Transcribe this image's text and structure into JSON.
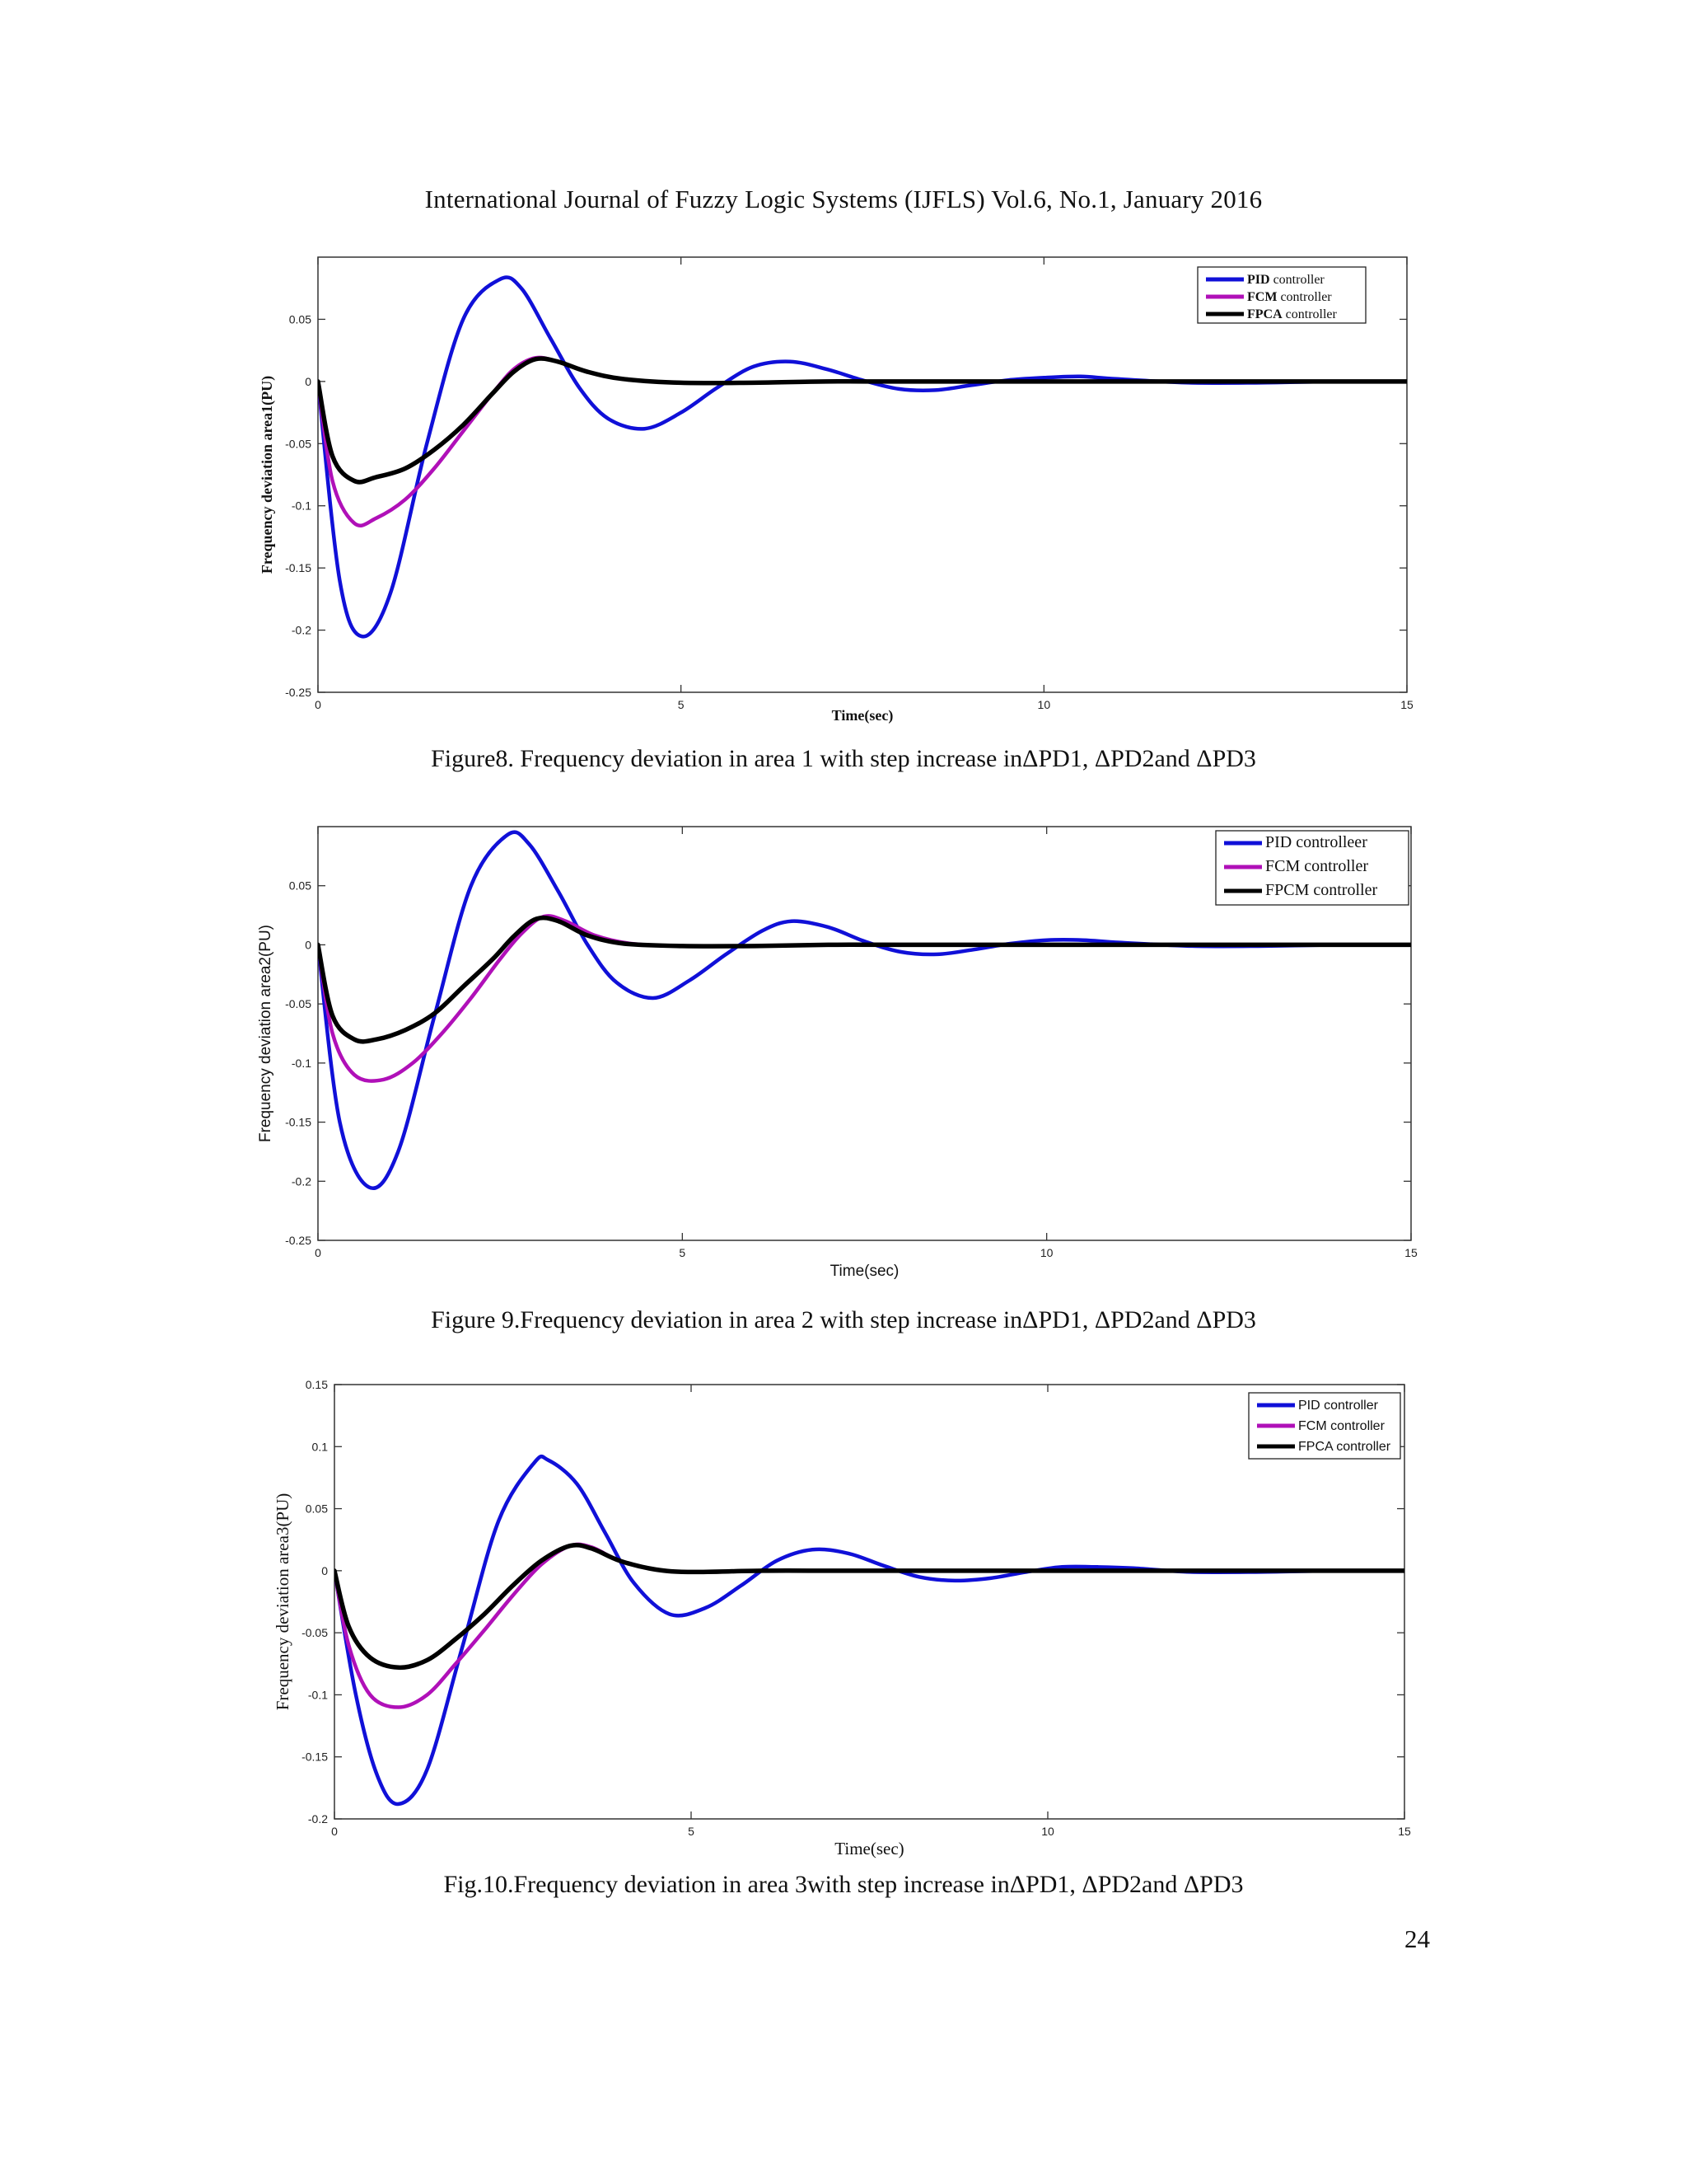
{
  "header": {
    "running_title": "International Journal of Fuzzy Logic Systems (IJFLS) Vol.6, No.1, January 2016"
  },
  "page_number": "24",
  "figures": [
    {
      "caption": "Figure8. Frequency deviation in area 1 with step increase inΔPD1, ΔPD2and ΔPD3"
    },
    {
      "caption": "Figure 9.Frequency deviation in area 2 with step increase inΔPD1, ΔPD2and ΔPD3"
    },
    {
      "caption": "Fig.10.Frequency deviation in area 3with step increase inΔPD1, ΔPD2and ΔPD3"
    }
  ],
  "colors": {
    "pid": "#1010d8",
    "fcm": "#b010b8",
    "fpca": "#000000"
  },
  "chart_data": [
    {
      "type": "line",
      "xlabel": "Time(sec)",
      "ylabel": "Frequency deviation area1(PU)",
      "xlim": [
        0,
        15
      ],
      "ylim": [
        -0.25,
        0.1
      ],
      "xticks": [
        "0",
        "5",
        "10",
        "15"
      ],
      "yticks": [
        "0.05",
        "0",
        "-0.05",
        "-0.1",
        "-0.15",
        "-0.2",
        "-0.25"
      ],
      "legend_position": "top-right",
      "series": [
        {
          "name": "PID controller",
          "color": "#1010d8",
          "x": [
            0,
            0.3,
            0.6,
            1.0,
            1.5,
            2.0,
            2.5,
            2.8,
            3.2,
            3.6,
            4.0,
            4.5,
            5.0,
            5.5,
            6.0,
            6.5,
            7.0,
            7.5,
            8.0,
            8.5,
            9.0,
            9.5,
            10.0,
            10.5,
            11.0,
            12.0,
            13.0,
            14.0,
            15.0
          ],
          "y": [
            0,
            -0.16,
            -0.205,
            -0.17,
            -0.05,
            0.05,
            0.082,
            0.075,
            0.035,
            -0.005,
            -0.03,
            -0.038,
            -0.025,
            -0.005,
            0.012,
            0.016,
            0.01,
            0.001,
            -0.006,
            -0.007,
            -0.003,
            0.001,
            0.003,
            0.004,
            0.002,
            -0.001,
            -0.001,
            0,
            0
          ]
        },
        {
          "name": "FCM controller",
          "color": "#b010b8",
          "x": [
            0,
            0.2,
            0.5,
            0.8,
            1.2,
            1.6,
            2.0,
            2.4,
            2.7,
            3.0,
            3.3,
            3.7,
            4.2,
            5.0,
            6.0,
            7.0,
            8.0,
            10.0,
            12.0,
            15.0
          ],
          "y": [
            0,
            -0.08,
            -0.114,
            -0.11,
            -0.095,
            -0.07,
            -0.04,
            -0.01,
            0.01,
            0.019,
            0.016,
            0.008,
            0.002,
            -0.001,
            -0.001,
            0,
            0,
            0,
            0,
            0
          ]
        },
        {
          "name": "FPCA controller",
          "color": "#000000",
          "x": [
            0,
            0.2,
            0.5,
            0.8,
            1.2,
            1.6,
            2.0,
            2.4,
            2.7,
            3.0,
            3.3,
            3.7,
            4.2,
            5.0,
            6.0,
            7.0,
            8.0,
            10.0,
            12.0,
            15.0
          ],
          "y": [
            0,
            -0.06,
            -0.08,
            -0.077,
            -0.07,
            -0.055,
            -0.035,
            -0.01,
            0.008,
            0.018,
            0.016,
            0.008,
            0.002,
            -0.001,
            -0.001,
            0,
            0,
            0,
            0,
            0
          ]
        }
      ]
    },
    {
      "type": "line",
      "xlabel": "Time(sec)",
      "ylabel": "Frequency deviation area2(PU)",
      "xlim": [
        0,
        15
      ],
      "ylim": [
        -0.25,
        0.1
      ],
      "xticks": [
        "0",
        "5",
        "10",
        "15"
      ],
      "yticks": [
        "0.05",
        "0",
        "-0.05",
        "-0.1",
        "-0.15",
        "-0.2",
        "-0.25"
      ],
      "legend_position": "top-right",
      "series": [
        {
          "name": "PID controlleer",
          "color": "#1010d8",
          "x": [
            0,
            0.3,
            0.7,
            1.1,
            1.6,
            2.1,
            2.6,
            2.9,
            3.3,
            3.7,
            4.1,
            4.6,
            5.1,
            5.6,
            6.1,
            6.5,
            7.0,
            7.5,
            8.0,
            8.5,
            9.0,
            9.5,
            10.0,
            10.5,
            11.0,
            12.0,
            13.0,
            14.0,
            15.0
          ],
          "y": [
            0,
            -0.15,
            -0.205,
            -0.175,
            -0.06,
            0.05,
            0.093,
            0.085,
            0.045,
            0.0,
            -0.032,
            -0.045,
            -0.03,
            -0.008,
            0.012,
            0.02,
            0.015,
            0.003,
            -0.006,
            -0.008,
            -0.004,
            0.001,
            0.004,
            0.004,
            0.002,
            -0.001,
            -0.001,
            0,
            0
          ]
        },
        {
          "name": "FCM controller",
          "color": "#b010b8",
          "x": [
            0,
            0.2,
            0.5,
            0.9,
            1.3,
            1.7,
            2.1,
            2.5,
            2.8,
            3.1,
            3.4,
            3.8,
            4.3,
            5.0,
            6.0,
            7.0,
            8.0,
            10.0,
            12.0,
            15.0
          ],
          "y": [
            0,
            -0.075,
            -0.11,
            -0.114,
            -0.1,
            -0.075,
            -0.045,
            -0.012,
            0.01,
            0.024,
            0.02,
            0.008,
            0.001,
            -0.001,
            -0.001,
            0,
            0,
            0,
            0,
            0
          ]
        },
        {
          "name": "FPCM controller",
          "color": "#000000",
          "x": [
            0,
            0.2,
            0.5,
            0.8,
            1.2,
            1.6,
            2.0,
            2.4,
            2.7,
            3.0,
            3.3,
            3.7,
            4.2,
            5.0,
            6.0,
            7.0,
            8.0,
            10.0,
            12.0,
            15.0
          ],
          "y": [
            0,
            -0.06,
            -0.08,
            -0.08,
            -0.072,
            -0.058,
            -0.035,
            -0.012,
            0.008,
            0.022,
            0.02,
            0.008,
            0.001,
            -0.001,
            -0.001,
            0,
            0,
            0,
            0,
            0
          ]
        }
      ]
    },
    {
      "type": "line",
      "xlabel": "Time(sec)",
      "ylabel": "Frequency deviation area3(PU)",
      "xlim": [
        0,
        15
      ],
      "ylim": [
        -0.2,
        0.15
      ],
      "xticks": [
        "0",
        "5",
        "10",
        "15"
      ],
      "yticks": [
        "0.15",
        "0.1",
        "0.05",
        "0",
        "-0.05",
        "-0.1",
        "-0.15",
        "-0.2"
      ],
      "legend_position": "top-right",
      "series": [
        {
          "name": "PID controller",
          "color": "#1010d8",
          "x": [
            0,
            0.3,
            0.6,
            0.9,
            1.3,
            1.8,
            2.3,
            2.8,
            3.0,
            3.4,
            3.8,
            4.2,
            4.7,
            5.2,
            5.7,
            6.2,
            6.7,
            7.2,
            7.7,
            8.2,
            8.7,
            9.2,
            9.7,
            10.2,
            10.7,
            11.2,
            12.0,
            13.0,
            14.0,
            15.0
          ],
          "y": [
            0,
            -0.1,
            -0.165,
            -0.188,
            -0.16,
            -0.06,
            0.04,
            0.087,
            0.089,
            0.07,
            0.03,
            -0.01,
            -0.035,
            -0.03,
            -0.012,
            0.008,
            0.017,
            0.014,
            0.004,
            -0.005,
            -0.008,
            -0.006,
            -0.001,
            0.003,
            0.003,
            0.002,
            -0.001,
            -0.001,
            0,
            0
          ]
        },
        {
          "name": "FCM controller",
          "color": "#b010b8",
          "x": [
            0,
            0.2,
            0.5,
            0.9,
            1.3,
            1.7,
            2.1,
            2.5,
            2.9,
            3.3,
            3.6,
            4.0,
            4.5,
            5.0,
            6.0,
            7.0,
            8.0,
            10.0,
            12.0,
            15.0
          ],
          "y": [
            0,
            -0.06,
            -0.1,
            -0.11,
            -0.1,
            -0.075,
            -0.048,
            -0.02,
            0.005,
            0.02,
            0.019,
            0.008,
            0.001,
            -0.001,
            0,
            0,
            0,
            0,
            0,
            0
          ]
        },
        {
          "name": "FPCA controller",
          "color": "#000000",
          "x": [
            0,
            0.2,
            0.5,
            0.9,
            1.3,
            1.7,
            2.1,
            2.5,
            2.9,
            3.3,
            3.6,
            4.0,
            4.5,
            5.0,
            6.0,
            7.0,
            8.0,
            10.0,
            12.0,
            15.0
          ],
          "y": [
            0,
            -0.045,
            -0.07,
            -0.078,
            -0.072,
            -0.055,
            -0.035,
            -0.012,
            0.008,
            0.02,
            0.018,
            0.008,
            0.001,
            -0.001,
            0,
            0,
            0,
            0,
            0,
            0
          ]
        }
      ]
    }
  ]
}
